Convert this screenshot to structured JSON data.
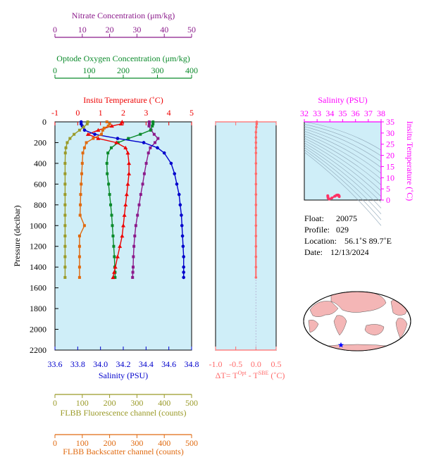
{
  "colors": {
    "nitrate": "#8b1a8b",
    "oxygen": "#0a8a2a",
    "temperature": "#ee0000",
    "salinity": "#0000cc",
    "fluorescence": "#9a9a28",
    "backscatter": "#e06a10",
    "delta": "#ff6a6a",
    "ts": "#ff00ff",
    "plot_bg": "#cfeef8",
    "land": "#f4b6b6"
  },
  "axes": {
    "nitrate": {
      "label": "Nitrate Concentration (μm/kg)",
      "ticks": [
        "0",
        "10",
        "20",
        "30",
        "40",
        "50"
      ]
    },
    "oxygen": {
      "label": "Optode Oxygen Concentration (μm/kg)",
      "ticks": [
        "0",
        "100",
        "200",
        "300",
        "400"
      ]
    },
    "temperature": {
      "label": "Insitu Temperature (˚C)",
      "ticks": [
        "-1",
        "0",
        "1",
        "2",
        "3",
        "4",
        "5"
      ]
    },
    "pressure": {
      "label": "Pressure (decibar)",
      "ticks": [
        "0",
        "200",
        "400",
        "600",
        "800",
        "1000",
        "1200",
        "1400",
        "1600",
        "1800",
        "2000",
        "2200"
      ]
    },
    "salinity": {
      "label": "Salinity (PSU)",
      "ticks": [
        "33.6",
        "33.8",
        "34.0",
        "34.2",
        "34.4",
        "34.6",
        "34.8"
      ]
    },
    "fluorescence": {
      "label": "FLBB Fluorescence channel (counts)",
      "ticks": [
        "0",
        "100",
        "200",
        "300",
        "400",
        "500"
      ]
    },
    "backscatter": {
      "label": "FLBB Backscatter channel (counts)",
      "ticks": [
        "0",
        "100",
        "200",
        "300",
        "400",
        "500"
      ]
    },
    "delta": {
      "label_prefix": "ΔT= T",
      "label_sup1": "Opt",
      "label_mid": " - T",
      "label_sup2": "SBE",
      "label_suffix": " (˚C)",
      "ticks": [
        "-1.0",
        "-0.5",
        "0.0",
        "0.5"
      ]
    },
    "ts_salinity": {
      "label": "Salinity (PSU)",
      "ticks": [
        "32",
        "33",
        "34",
        "35",
        "36",
        "37",
        "38"
      ]
    },
    "ts_temperature": {
      "label": "Insitu Temperature (˚C)",
      "ticks": [
        "0",
        "5",
        "10",
        "15",
        "20",
        "25",
        "30",
        "35"
      ]
    }
  },
  "info": {
    "float_label": "Float:",
    "float": "20075",
    "profile_label": "Profile:",
    "profile": "029",
    "location_label": "Location:",
    "location": "56.1˚S  89.7˚E",
    "date_label": "Date:",
    "date": "12/13/2024"
  },
  "chart_data": [
    {
      "type": "line",
      "y_axis": "Pressure (decibar)",
      "ylim": [
        2200,
        0
      ],
      "grid": false,
      "series": [
        {
          "name": "Nitrate Concentration (μm/kg)",
          "xlim": [
            0,
            50
          ],
          "marker": "square",
          "x": [
            34.5,
            34.5,
            34.4,
            35.2,
            36.3,
            37.7,
            36.6,
            34.9,
            34.2,
            33.4,
            32.7,
            32.1,
            31.4,
            30.8,
            30.2,
            29.6,
            29.2,
            28.9,
            28.7,
            28.6,
            28.5,
            28.4
          ],
          "y": [
            0,
            20,
            40,
            80,
            120,
            160,
            200,
            250,
            300,
            400,
            500,
            600,
            700,
            800,
            900,
            1000,
            1100,
            1200,
            1300,
            1400,
            1450,
            1500
          ]
        },
        {
          "name": "Optode Oxygen Concentration (μm/kg)",
          "xlim": [
            0,
            400
          ],
          "marker": "square",
          "x": [
            287,
            287,
            285,
            280,
            250,
            215,
            185,
            165,
            155,
            152,
            153,
            157,
            160,
            163,
            166,
            168,
            170,
            172,
            174,
            175,
            176,
            176
          ],
          "y": [
            0,
            20,
            40,
            80,
            120,
            160,
            200,
            250,
            300,
            400,
            500,
            600,
            700,
            800,
            900,
            1000,
            1100,
            1200,
            1300,
            1400,
            1450,
            1500
          ]
        },
        {
          "name": "Insitu Temperature (˚C)",
          "xlim": [
            -1,
            5
          ],
          "marker": "triangle",
          "x": [
            1.95,
            1.9,
            1.5,
            0.9,
            0.45,
            0.9,
            1.7,
            2.1,
            2.2,
            2.25,
            2.25,
            2.2,
            2.15,
            2.1,
            2.05,
            2.0,
            1.95,
            1.85,
            1.75,
            1.65,
            1.6,
            1.55
          ],
          "y": [
            0,
            20,
            40,
            80,
            120,
            160,
            200,
            250,
            300,
            400,
            500,
            600,
            700,
            800,
            900,
            1000,
            1100,
            1200,
            1300,
            1400,
            1450,
            1500
          ]
        },
        {
          "name": "Salinity (PSU)",
          "xlim": [
            33.6,
            34.8
          ],
          "marker": "circle",
          "x": [
            33.83,
            33.83,
            33.84,
            33.86,
            33.95,
            34.15,
            34.38,
            34.5,
            34.56,
            34.62,
            34.65,
            34.67,
            34.69,
            34.7,
            34.71,
            34.715,
            34.72,
            34.725,
            34.73,
            34.73,
            34.73,
            34.73
          ],
          "y": [
            0,
            20,
            40,
            80,
            120,
            160,
            200,
            250,
            300,
            400,
            500,
            600,
            700,
            800,
            900,
            1000,
            1100,
            1200,
            1300,
            1400,
            1450,
            1500
          ]
        },
        {
          "name": "FLBB Fluorescence channel (counts)",
          "xlim": [
            0,
            500
          ],
          "marker": "square",
          "x": [
            120,
            118,
            105,
            90,
            70,
            55,
            45,
            40,
            38,
            37,
            37,
            37,
            37,
            37,
            37,
            37,
            37,
            37,
            37,
            37,
            37
          ],
          "y": [
            0,
            20,
            50,
            80,
            120,
            160,
            200,
            250,
            300,
            400,
            500,
            600,
            700,
            800,
            900,
            1000,
            1100,
            1200,
            1300,
            1400,
            1500
          ]
        },
        {
          "name": "FLBB Backscatter channel (counts)",
          "xlim": [
            0,
            500
          ],
          "marker": "square",
          "x": [
            190,
            200,
            195,
            180,
            175,
            170,
            140,
            115,
            108,
            102,
            100,
            98,
            96,
            94,
            93,
            92,
            108,
            90,
            90,
            90,
            90,
            90
          ],
          "y": [
            0,
            20,
            40,
            60,
            80,
            120,
            160,
            200,
            250,
            300,
            400,
            500,
            600,
            700,
            800,
            900,
            1000,
            1100,
            1200,
            1300,
            1400,
            1500
          ]
        }
      ]
    },
    {
      "type": "line",
      "x_axis": "ΔT= T Opt - T SBE (˚C)",
      "xlim": [
        -1.0,
        0.5
      ],
      "ylim": [
        2200,
        0
      ],
      "series": [
        {
          "name": "ΔT",
          "x": [
            0.02,
            0.02,
            0.01,
            0.0,
            0.0,
            0.0,
            0.0,
            0.0,
            0.0,
            0.0,
            0.0,
            0.0,
            0.0,
            0.0,
            0.0,
            0.0,
            0.0,
            0.0,
            0.0,
            0.0
          ],
          "y": [
            0,
            20,
            50,
            100,
            150,
            200,
            250,
            300,
            400,
            500,
            600,
            700,
            800,
            900,
            1000,
            1100,
            1200,
            1300,
            1400,
            1500
          ]
        }
      ]
    },
    {
      "type": "scatter",
      "xlabel": "Salinity (PSU)",
      "ylabel": "Insitu Temperature (˚C)",
      "xlim": [
        32,
        38
      ],
      "ylim": [
        0,
        35
      ],
      "series": [
        {
          "name": "T-S",
          "x": [
            33.83,
            33.84,
            33.86,
            33.95,
            34.15,
            34.38,
            34.5,
            34.56,
            34.62,
            34.65,
            34.67,
            34.7,
            34.72,
            34.73
          ],
          "y": [
            1.95,
            1.5,
            0.9,
            0.45,
            0.9,
            1.7,
            2.1,
            2.2,
            2.25,
            2.2,
            2.1,
            2.0,
            1.8,
            1.55
          ]
        }
      ]
    }
  ]
}
